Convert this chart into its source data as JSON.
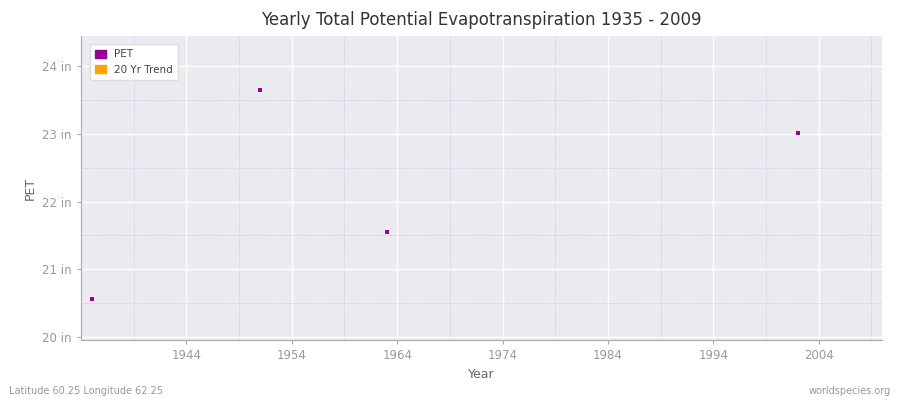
{
  "title": "Yearly Total Potential Evapotranspiration 1935 - 2009",
  "xlabel": "Year",
  "ylabel": "PET",
  "footnote_left": "Latitude 60.25 Longitude 62.25",
  "footnote_right": "worldspecies.org",
  "xlim": [
    1934,
    2010
  ],
  "ylim": [
    19.95,
    24.45
  ],
  "yticks": [
    20,
    21,
    22,
    23,
    24
  ],
  "ytick_labels": [
    "20 in",
    "21 in",
    "22 in",
    "23 in",
    "24 in"
  ],
  "xticks": [
    1944,
    1954,
    1964,
    1974,
    1984,
    1994,
    2004
  ],
  "data_points": [
    {
      "year": 1935,
      "value": 20.55
    },
    {
      "year": 1951,
      "value": 23.65
    },
    {
      "year": 1963,
      "value": 21.55
    },
    {
      "year": 2002,
      "value": 23.02
    }
  ],
  "pet_color": "#990099",
  "trend_color": "#FFA500",
  "bg_color": "#EAEAF0",
  "fig_bg_color": "#FFFFFF",
  "grid_major_color": "#FFFFFF",
  "grid_minor_color": "#CCCCDD",
  "tick_label_color": "#999999",
  "spine_color": "#AAAAAA",
  "title_color": "#333333",
  "label_color": "#666666",
  "footnote_color": "#999999",
  "legend_items": [
    "PET",
    "20 Yr Trend"
  ],
  "marker_size": 3.5
}
